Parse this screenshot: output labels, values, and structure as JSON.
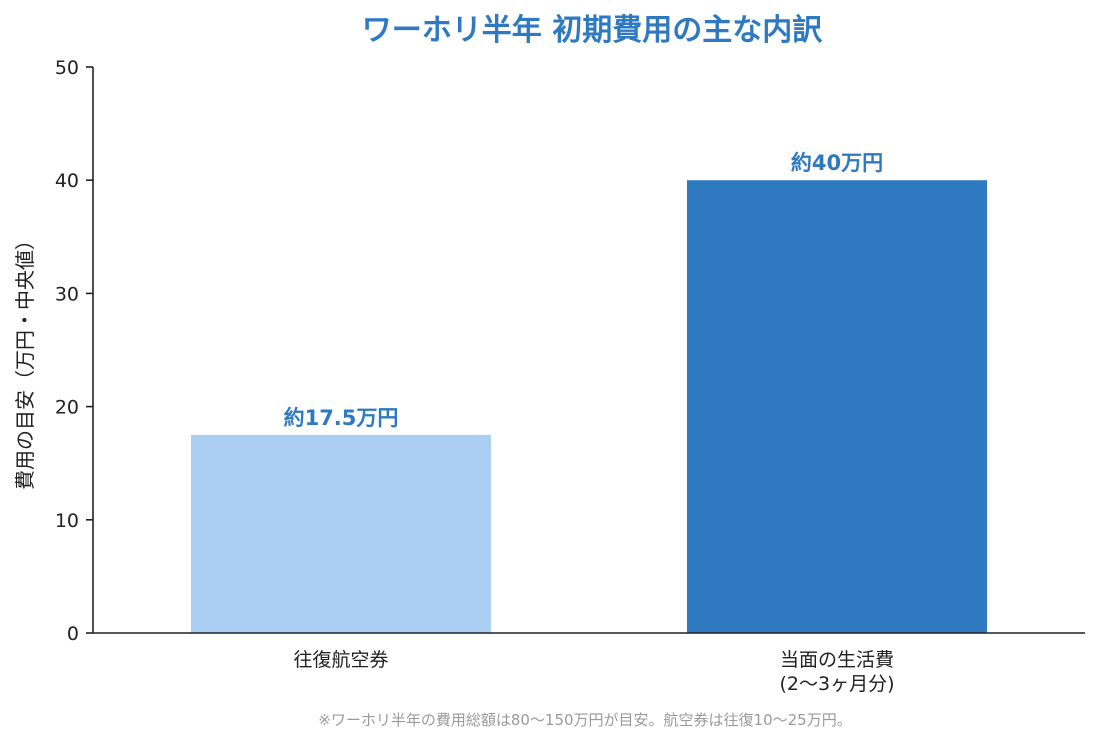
{
  "chart_data": {
    "type": "bar",
    "title": "ワーホリ半年 初期費用の主な内訳",
    "ylabel": "費用の目安（万円・中央値）",
    "xlabel": "",
    "ylim": [
      0,
      50
    ],
    "yticks": [
      0,
      10,
      20,
      30,
      40,
      50
    ],
    "grid": false,
    "categories": [
      {
        "lines": [
          "往復航空券"
        ]
      },
      {
        "lines": [
          "当面の生活費",
          "(2〜3ヶ月分)"
        ]
      }
    ],
    "values": [
      17.5,
      40
    ],
    "data_labels": [
      "約17.5万円",
      "約40万円"
    ],
    "colors": [
      "#aacff3",
      "#2f79c1"
    ],
    "label_color": "#2f79c1",
    "footnote": "※ワーホリ半年の費用総額は80〜150万円が目安。航空券は往復10〜25万円。"
  }
}
